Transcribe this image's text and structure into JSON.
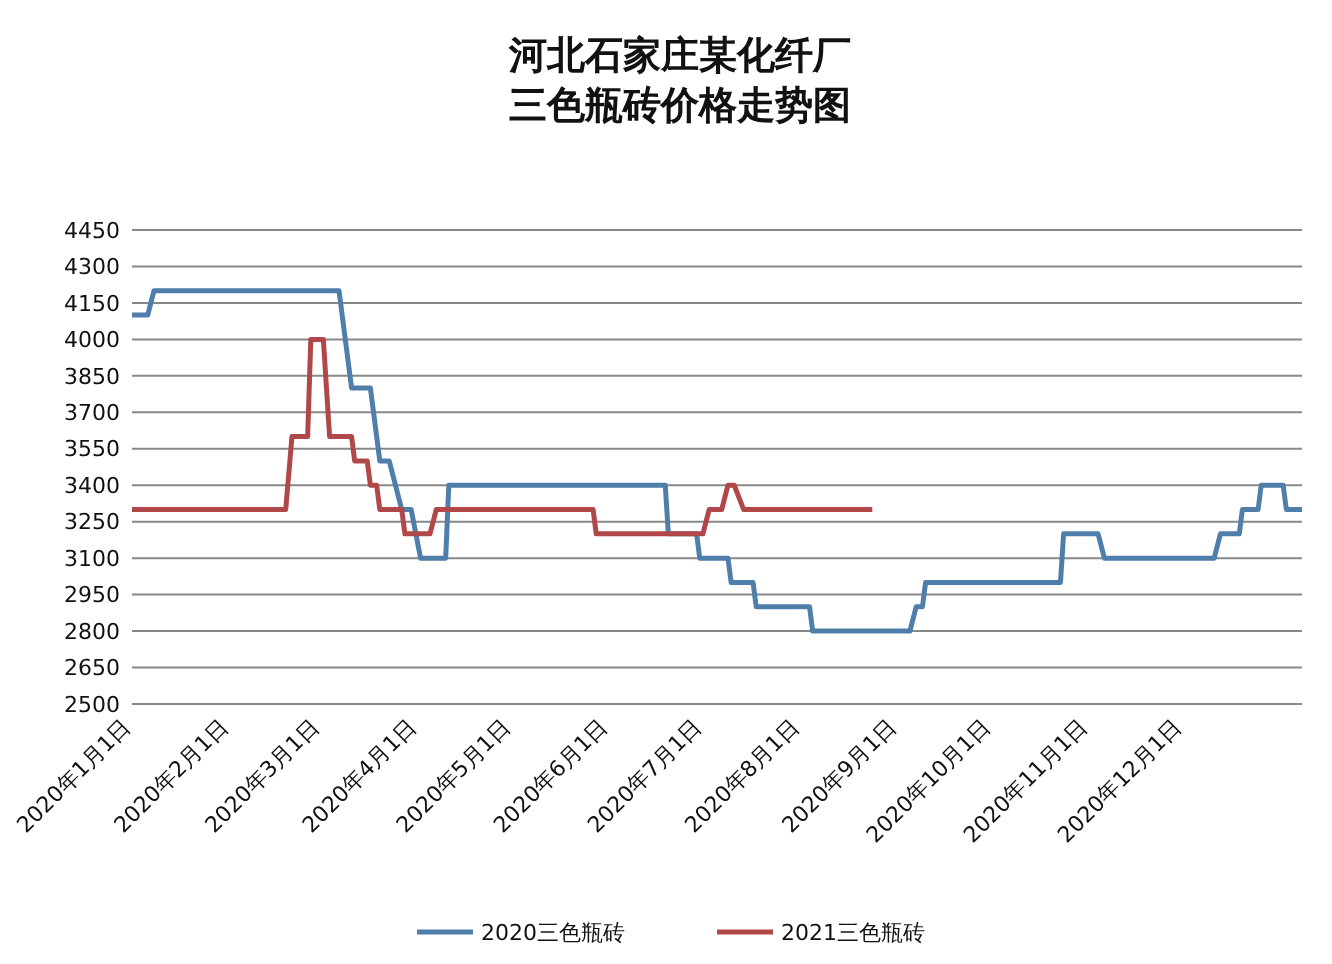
{
  "chart_data": {
    "type": "line",
    "title": "河北石家庄某化纤厂",
    "subtitle": "三色瓶砖价格走势图",
    "xlim": [
      "2020-01-01",
      "2021-01-08"
    ],
    "xticks": [
      {
        "value": "2020-01-01",
        "label": "2020年1月1日"
      },
      {
        "value": "2020-02-01",
        "label": "2020年2月1日"
      },
      {
        "value": "2020-03-01",
        "label": "2020年3月1日"
      },
      {
        "value": "2020-04-01",
        "label": "2020年4月1日"
      },
      {
        "value": "2020-05-01",
        "label": "2020年5月1日"
      },
      {
        "value": "2020-06-01",
        "label": "2020年6月1日"
      },
      {
        "value": "2020-07-01",
        "label": "2020年7月1日"
      },
      {
        "value": "2020-08-01",
        "label": "2020年8月1日"
      },
      {
        "value": "2020-09-01",
        "label": "2020年9月1日"
      },
      {
        "value": "2020-10-01",
        "label": "2020年10月1日"
      },
      {
        "value": "2020-11-01",
        "label": "2020年11月1日"
      },
      {
        "value": "2020-12-01",
        "label": "2020年12月1日"
      }
    ],
    "ylim": [
      2500,
      4450
    ],
    "yticks": [
      2500,
      2650,
      2800,
      2950,
      3100,
      3250,
      3400,
      3550,
      3700,
      3850,
      4000,
      4150,
      4300,
      4450
    ],
    "grid": "y",
    "legend": "bottom",
    "marker": "none",
    "line_style": "solid",
    "series": [
      {
        "name": "2020三色瓶砖",
        "color": "#4f7eab",
        "x": [
          "2020-01-01",
          "2020-01-06",
          "2020-01-08",
          "2020-03-07",
          "2020-03-11",
          "2020-03-17",
          "2020-03-20",
          "2020-03-23",
          "2020-03-27",
          "2020-03-30",
          "2020-04-02",
          "2020-04-10",
          "2020-04-11",
          "2020-06-19",
          "2020-06-20",
          "2020-06-29",
          "2020-06-30",
          "2020-07-09",
          "2020-07-10",
          "2020-07-17",
          "2020-07-18",
          "2020-08-04",
          "2020-08-05",
          "2020-09-05",
          "2020-09-07",
          "2020-09-09",
          "2020-09-10",
          "2020-10-23",
          "2020-10-24",
          "2020-11-04",
          "2020-11-06",
          "2020-12-11",
          "2020-12-13",
          "2020-12-19",
          "2020-12-20",
          "2020-12-25",
          "2020-12-26",
          "2021-01-02",
          "2021-01-03",
          "2021-01-08"
        ],
        "values": [
          4100,
          4100,
          4200,
          4200,
          3800,
          3800,
          3500,
          3500,
          3300,
          3300,
          3100,
          3100,
          3400,
          3400,
          3200,
          3200,
          3100,
          3100,
          3000,
          3000,
          2900,
          2900,
          2800,
          2800,
          2900,
          2900,
          3000,
          3000,
          3200,
          3200,
          3100,
          3100,
          3200,
          3200,
          3300,
          3300,
          3400,
          3400,
          3300,
          3300
        ]
      },
      {
        "name": "2021三色瓶砖",
        "color": "#b0484a",
        "x": [
          "2020-01-01",
          "2020-02-19",
          "2020-02-21",
          "2020-02-26",
          "2020-02-27",
          "2020-03-02",
          "2020-03-04",
          "2020-03-11",
          "2020-03-12",
          "2020-03-16",
          "2020-03-17",
          "2020-03-19",
          "2020-03-20",
          "2020-03-27",
          "2020-03-28",
          "2020-04-05",
          "2020-04-07",
          "2020-05-27",
          "2020-05-28",
          "2020-07-01",
          "2020-07-03",
          "2020-07-07",
          "2020-07-09",
          "2020-07-11",
          "2020-07-14",
          "2020-08-24"
        ],
        "values": [
          3300,
          3300,
          3600,
          3600,
          4000,
          4000,
          3600,
          3600,
          3500,
          3500,
          3400,
          3400,
          3300,
          3300,
          3200,
          3200,
          3300,
          3300,
          3200,
          3200,
          3300,
          3300,
          3400,
          3400,
          3300,
          3300
        ]
      }
    ]
  }
}
